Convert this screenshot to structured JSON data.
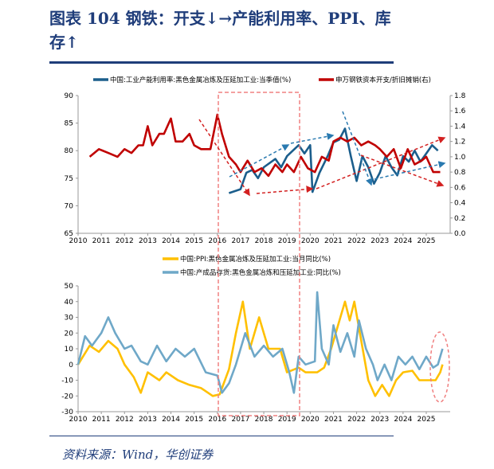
{
  "header": {
    "title_line1": "图表 104   钢铁：开支↓→产能利用率、PPI、库",
    "title_line2": "存↑"
  },
  "footer": {
    "source": "资料来源：Wind，华创证券"
  },
  "colors": {
    "title": "#1f3d7a",
    "util": "#1b5e8c",
    "capex": "#c00000",
    "ppi": "#ffc000",
    "inv": "#6fa8c8",
    "box": "#f08080"
  },
  "chart_data": [
    {
      "type": "line",
      "title": "",
      "xlim": [
        2010,
        2026
      ],
      "x_ticks": [
        "2010",
        "2011",
        "2012",
        "2013",
        "2014",
        "2015",
        "2016",
        "2017",
        "2018",
        "2019",
        "2020",
        "2021",
        "2022",
        "2023",
        "2024",
        "2025"
      ],
      "y_left": {
        "lim": [
          65,
          90
        ],
        "ticks": [
          "65",
          "70",
          "75",
          "80",
          "85",
          "90"
        ]
      },
      "y_right": {
        "lim": [
          0,
          1.8
        ],
        "ticks": [
          "0.0",
          "0.2",
          "0.4",
          "0.6",
          "0.8",
          "1.0",
          "1.2",
          "1.4",
          "1.6",
          "1.8"
        ]
      },
      "series": [
        {
          "name": "中国:工业产能利用率:黑色金属冶炼及压延加工业:当季值(%)",
          "axis": "left",
          "x": [
            2016.5,
            2017,
            2017.25,
            2017.5,
            2017.75,
            2018,
            2018.5,
            2018.75,
            2019,
            2019.5,
            2019.75,
            2020,
            2020.1,
            2020.4,
            2020.75,
            2021,
            2021.25,
            2021.5,
            2021.75,
            2022,
            2022.25,
            2022.5,
            2022.75,
            2023,
            2023.25,
            2023.5,
            2023.75,
            2024,
            2024.25,
            2024.5,
            2024.75,
            2025,
            2025.25,
            2025.5
          ],
          "y": [
            72.3,
            73,
            76,
            76.5,
            75,
            77,
            78.5,
            77,
            79,
            81,
            79.5,
            81,
            72.5,
            76,
            79,
            81.5,
            82,
            84,
            79,
            74.5,
            79,
            77,
            74,
            76,
            79,
            77,
            75.5,
            79,
            78,
            80,
            78,
            79.5,
            81,
            80
          ]
        },
        {
          "name": "申万钢铁资本开支/折旧摊销(右)",
          "axis": "right",
          "x": [
            2010.5,
            2010.9,
            2011.3,
            2011.7,
            2012,
            2012.3,
            2012.6,
            2012.8,
            2013,
            2013.2,
            2013.5,
            2013.7,
            2014,
            2014.2,
            2014.5,
            2014.8,
            2015,
            2015.3,
            2015.7,
            2016,
            2016.2,
            2016.5,
            2016.8,
            2017,
            2017.3,
            2017.6,
            2017.9,
            2018.2,
            2018.5,
            2018.8,
            2019,
            2019.3,
            2019.6,
            2019.9,
            2020.2,
            2020.5,
            2020.8,
            2021,
            2021.3,
            2021.6,
            2021.9,
            2022.2,
            2022.5,
            2022.8,
            2023,
            2023.3,
            2023.6,
            2023.9,
            2024.2,
            2024.5,
            2024.8,
            2025,
            2025.3,
            2025.6
          ],
          "y": [
            1.0,
            1.1,
            1.05,
            1.0,
            1.1,
            1.05,
            1.15,
            1.15,
            1.4,
            1.15,
            1.3,
            1.3,
            1.5,
            1.2,
            1.2,
            1.3,
            1.15,
            1.1,
            1.1,
            1.55,
            1.3,
            1.0,
            0.9,
            0.8,
            0.95,
            0.8,
            0.85,
            0.75,
            0.9,
            0.8,
            0.9,
            0.8,
            1.0,
            0.85,
            0.8,
            1.0,
            0.95,
            1.2,
            1.25,
            1.2,
            1.25,
            1.15,
            1.2,
            1.15,
            1.1,
            1.0,
            1.1,
            0.85,
            1.1,
            0.9,
            0.95,
            1.0,
            0.8,
            0.8
          ]
        }
      ]
    },
    {
      "type": "line",
      "title": "",
      "xlim": [
        2010,
        2026
      ],
      "x_ticks": [
        "2010",
        "2011",
        "2012",
        "2013",
        "2014",
        "2015",
        "2016",
        "2017",
        "2018",
        "2019",
        "2020",
        "2021",
        "2022",
        "2023",
        "2024",
        "2025"
      ],
      "y_left": {
        "lim": [
          -30,
          50
        ],
        "ticks": [
          "-30",
          "-20",
          "-10",
          "0",
          "10",
          "20",
          "30",
          "40",
          "50"
        ]
      },
      "series": [
        {
          "name": "中国:PPI:黑色金属冶炼及压延加工业:当月同比(%)",
          "x": [
            2010,
            2010.5,
            2010.9,
            2011.3,
            2011.7,
            2012,
            2012.4,
            2012.7,
            2013,
            2013.5,
            2013.8,
            2014.3,
            2014.8,
            2015.3,
            2015.8,
            2016.1,
            2016.5,
            2016.8,
            2017.1,
            2017.4,
            2017.8,
            2018.2,
            2018.7,
            2019,
            2019.5,
            2019.8,
            2020.3,
            2020.6,
            2020.9,
            2021.2,
            2021.5,
            2021.7,
            2021.9,
            2022.2,
            2022.5,
            2022.8,
            2023.1,
            2023.4,
            2023.7,
            2024,
            2024.4,
            2024.7,
            2025,
            2025.4,
            2025.6,
            2025.7
          ],
          "y": [
            0,
            12,
            8,
            15,
            10,
            0,
            -8,
            -18,
            -5,
            -10,
            -5,
            -10,
            -13,
            -15,
            -20,
            -19,
            -3,
            20,
            40,
            10,
            30,
            10,
            10,
            -5,
            -2,
            -5,
            -5,
            -2,
            10,
            25,
            40,
            28,
            40,
            15,
            -10,
            -20,
            -13,
            -20,
            -10,
            -5,
            -4,
            -10,
            -10,
            -10,
            -5,
            0
          ]
        },
        {
          "name": "中国:产成品存货:黑色金属冶炼和压延加工业:同比(%)",
          "x": [
            2010,
            2010.3,
            2010.6,
            2011,
            2011.3,
            2011.6,
            2012,
            2012.3,
            2012.7,
            2013,
            2013.4,
            2013.8,
            2014.2,
            2014.6,
            2015,
            2015.5,
            2016,
            2016.2,
            2016.5,
            2016.8,
            2017.2,
            2017.6,
            2018,
            2018.4,
            2018.8,
            2019.1,
            2019.3,
            2019.5,
            2019.8,
            2020.2,
            2020.3,
            2020.5,
            2020.8,
            2021,
            2021.3,
            2021.6,
            2021.9,
            2022.1,
            2022.4,
            2022.7,
            2022.9,
            2023.2,
            2023.5,
            2023.8,
            2024.1,
            2024.4,
            2024.7,
            2025,
            2025.3,
            2025.5,
            2025.7
          ],
          "y": [
            0,
            18,
            12,
            20,
            30,
            20,
            10,
            12,
            2,
            0,
            12,
            2,
            10,
            5,
            10,
            -5,
            -7,
            -18,
            -12,
            0,
            20,
            5,
            12,
            5,
            10,
            -5,
            -18,
            5,
            0,
            2,
            46,
            10,
            0,
            25,
            8,
            20,
            5,
            28,
            10,
            0,
            -10,
            0,
            -10,
            5,
            0,
            5,
            -3,
            5,
            -2,
            0,
            10
          ]
        }
      ]
    }
  ]
}
